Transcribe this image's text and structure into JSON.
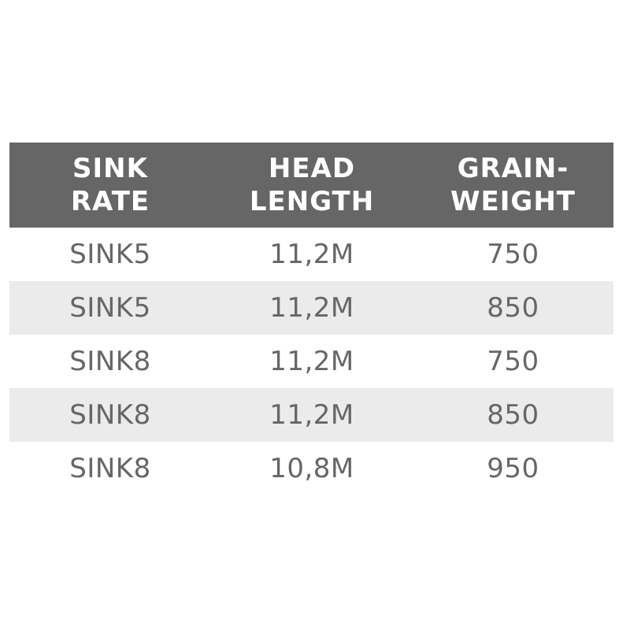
{
  "headers": [
    {
      "line1": "SINK",
      "line2": "RATE"
    },
    {
      "line1": "HEAD",
      "line2": "LENGTH"
    },
    {
      "line1": "GRAIN-",
      "line2": "WEIGHT"
    }
  ],
  "rows": [
    [
      "SINK5",
      "11,2M",
      "750"
    ],
    [
      "SINK5",
      "11,2M",
      "850"
    ],
    [
      "SINK8",
      "11,2M",
      "750"
    ],
    [
      "SINK8",
      "11,2M",
      "850"
    ],
    [
      "SINK8",
      "10,8M",
      "950"
    ]
  ],
  "colors": {
    "header_bg": "#666666",
    "text": "#666666",
    "alt_row": "#ebebeb"
  }
}
